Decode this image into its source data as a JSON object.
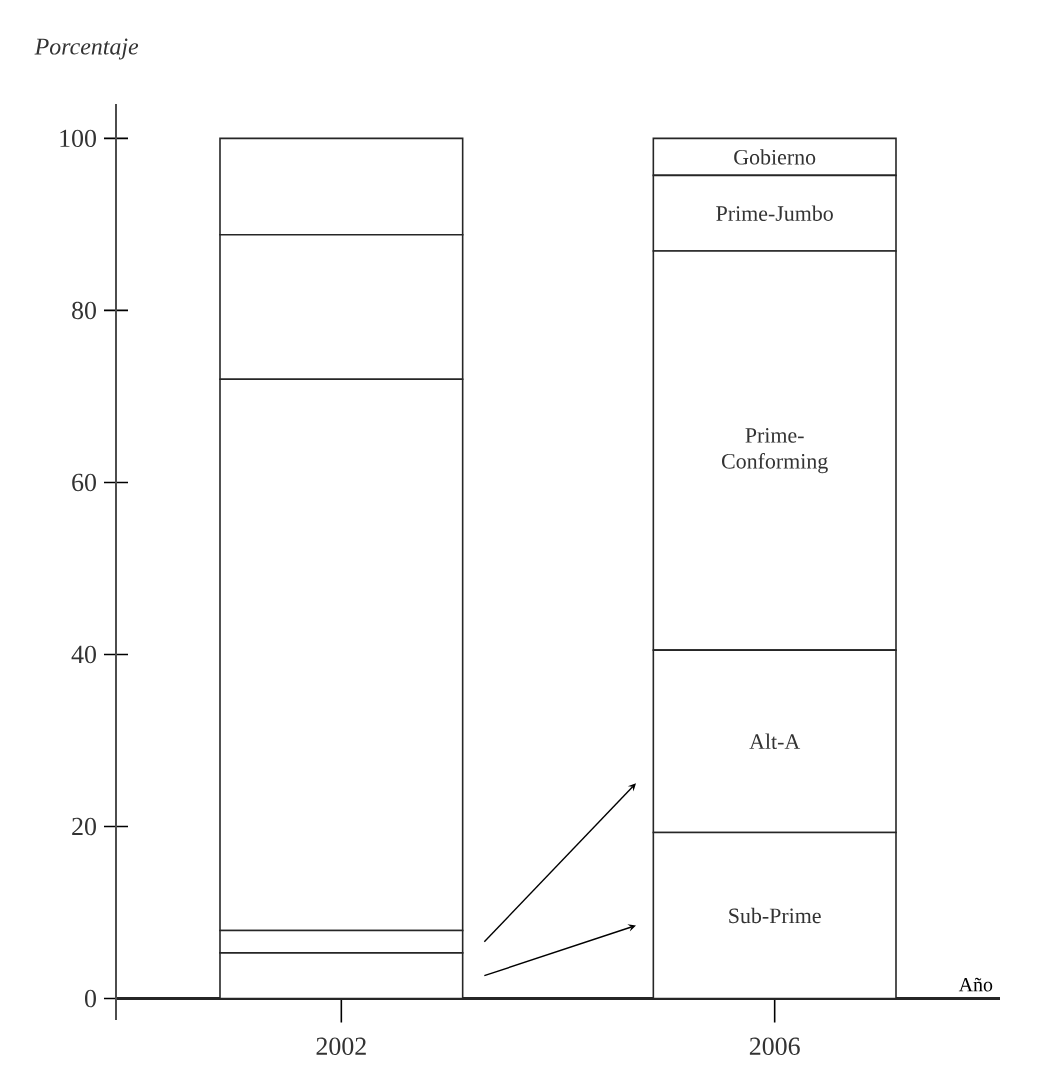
{
  "chart_data": {
    "type": "bar",
    "stacked": true,
    "xlabel": "Año",
    "ylabel": "Porcentaje",
    "categories": [
      "2002",
      "2006"
    ],
    "series": [
      {
        "name": "Sub-Prime",
        "color": "#ffffff",
        "values": [
          5.3,
          19.3
        ]
      },
      {
        "name": "Alt-A",
        "color": "#ffffff",
        "values": [
          2.6,
          21.2
        ]
      },
      {
        "name": "Prime-Conforming",
        "color": "#ffffff",
        "values": [
          64.1,
          46.4
        ]
      },
      {
        "name": "Prime-Jumbo",
        "color": "#ffffff",
        "values": [
          16.8,
          8.8
        ]
      },
      {
        "name": "Gobierno",
        "color": "#ffffff",
        "values": [
          11.2,
          4.3
        ]
      }
    ],
    "ylim": [
      0,
      100
    ],
    "yticks": [
      0,
      20,
      40,
      60,
      80,
      100
    ],
    "grid": false
  }
}
